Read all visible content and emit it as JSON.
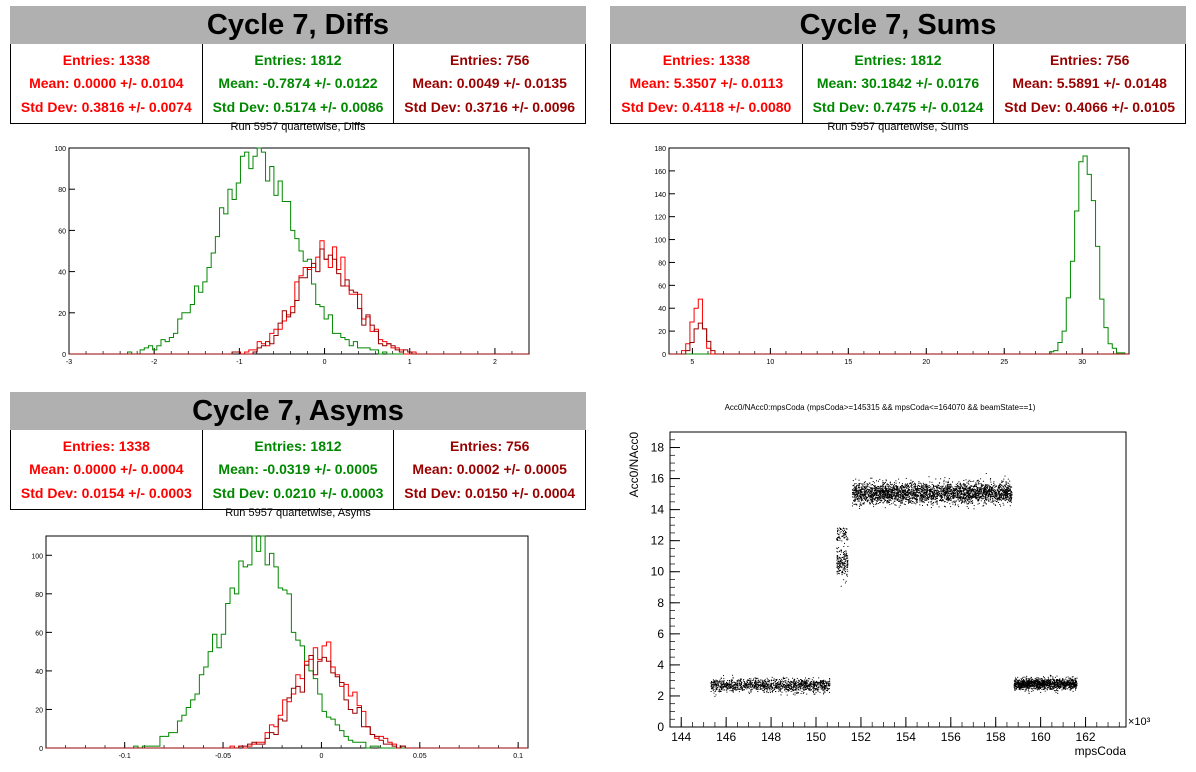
{
  "panels": [
    {
      "title": "Cycle 7, Diffs",
      "subtitle": "Run 5957 quartetwise, Diffs",
      "stats": [
        {
          "entries": "Entries: 1338",
          "mean": "Mean: 0.0000 +/- 0.0104",
          "std": "Std Dev: 0.3816 +/- 0.0074",
          "color": "#ff0000"
        },
        {
          "entries": "Entries: 1812",
          "mean": "Mean: -0.7874 +/- 0.0122",
          "std": "Std Dev: 0.5174 +/- 0.0086",
          "color": "#008800"
        },
        {
          "entries": "Entries: 756",
          "mean": "Mean: 0.0049 +/- 0.0135",
          "std": "Std Dev: 0.3716 +/- 0.0096",
          "color": "#990000"
        }
      ]
    },
    {
      "title": "Cycle 7, Sums",
      "subtitle": "Run 5957 quartetwise, Sums",
      "stats": [
        {
          "entries": "Entries: 1338",
          "mean": "Mean: 5.3507 +/- 0.0113",
          "std": "Std Dev: 0.4118 +/- 0.0080",
          "color": "#ff0000"
        },
        {
          "entries": "Entries: 1812",
          "mean": "Mean: 30.1842 +/- 0.0176",
          "std": "Std Dev: 0.7475 +/- 0.0124",
          "color": "#008800"
        },
        {
          "entries": "Entries: 756",
          "mean": "Mean: 5.5891 +/- 0.0148",
          "std": "Std Dev: 0.4066 +/- 0.0105",
          "color": "#990000"
        }
      ]
    },
    {
      "title": "Cycle 7, Asyms",
      "subtitle": "Run 5957 quartetwise, Asyms",
      "stats": [
        {
          "entries": "Entries: 1338",
          "mean": "Mean: 0.0000 +/- 0.0004",
          "std": "Std Dev: 0.0154 +/- 0.0003",
          "color": "#ff0000"
        },
        {
          "entries": "Entries: 1812",
          "mean": "Mean: -0.0319 +/- 0.0005",
          "std": "Std Dev: 0.0210 +/- 0.0003",
          "color": "#008800"
        },
        {
          "entries": "Entries: 756",
          "mean": "Mean: 0.0002 +/- 0.0005",
          "std": "Std Dev: 0.0150 +/- 0.0004",
          "color": "#990000"
        }
      ]
    }
  ],
  "chart_data": [
    {
      "type": "histogram",
      "name": "diffs",
      "xlim": [
        -3,
        2.4
      ],
      "ylim": [
        0,
        100
      ],
      "xticks": [
        -3,
        -2,
        -1,
        0,
        1,
        2
      ],
      "yticks": [
        0,
        20,
        40,
        60,
        80,
        100
      ],
      "series": [
        {
          "color": "#008800",
          "mean": -0.7874,
          "std": 0.5174,
          "entries": 1812,
          "peak": 95
        },
        {
          "color": "#ff0000",
          "mean": 0.0,
          "std": 0.3816,
          "entries": 1338,
          "peak": 49
        },
        {
          "color": "#990000",
          "mean": 0.0049,
          "std": 0.3716,
          "entries": 756,
          "peak": 47
        }
      ]
    },
    {
      "type": "histogram",
      "name": "sums",
      "xlim": [
        3.5,
        33
      ],
      "ylim": [
        0,
        180
      ],
      "xticks": [
        5,
        10,
        15,
        20,
        25,
        30
      ],
      "yticks": [
        0,
        20,
        40,
        60,
        80,
        100,
        120,
        140,
        160,
        180
      ],
      "series": [
        {
          "color": "#008800",
          "mean": 30.1842,
          "std": 0.7475,
          "entries": 1812,
          "peak": 173
        },
        {
          "color": "#ff0000",
          "mean": 5.3507,
          "std": 0.4118,
          "entries": 1338,
          "peak": 47
        },
        {
          "color": "#990000",
          "mean": 5.5891,
          "std": 0.4066,
          "entries": 756,
          "peak": 30
        }
      ]
    },
    {
      "type": "histogram",
      "name": "asyms",
      "xlim": [
        -0.14,
        0.105
      ],
      "ylim": [
        0,
        110
      ],
      "xticks": [
        -0.1,
        -0.05,
        0,
        0.05,
        0.1
      ],
      "xticklabels": [
        "-0.1",
        "-0.05",
        "0",
        "0.05",
        "0.1"
      ],
      "yticks": [
        0,
        20,
        40,
        60,
        80,
        100
      ],
      "series": [
        {
          "color": "#008800",
          "mean": -0.0319,
          "std": 0.021,
          "entries": 1812,
          "peak": 107
        },
        {
          "color": "#ff0000",
          "mean": 0.0,
          "std": 0.0154,
          "entries": 1338,
          "peak": 51
        },
        {
          "color": "#990000",
          "mean": 0.0002,
          "std": 0.015,
          "entries": 756,
          "peak": 45
        }
      ]
    },
    {
      "type": "scatter",
      "name": "acc0",
      "title": "Acc0/NAcc0:mpsCoda (mpsCoda>=145315 && mpsCoda<=164070 && beamState==1)",
      "xlabel": "mpsCoda",
      "ylabel": "Acc0/NAcc0",
      "xunit": "×10³",
      "xlim": [
        143.5,
        163.8
      ],
      "ylim": [
        0,
        19
      ],
      "xticks": [
        144,
        146,
        148,
        150,
        152,
        154,
        156,
        158,
        160,
        162
      ],
      "yticks": [
        0,
        2,
        4,
        6,
        8,
        10,
        12,
        14,
        16,
        18
      ],
      "clusters": [
        {
          "x": [
            145.3,
            150.6
          ],
          "y": 2.7,
          "spread": 0.35
        },
        {
          "x": [
            150.9,
            151.4
          ],
          "y": 10.6,
          "spread": 0.8
        },
        {
          "x": [
            151.6,
            158.7
          ],
          "y": 15.1,
          "spread": 0.55
        },
        {
          "x": [
            158.8,
            161.6
          ],
          "y": 2.8,
          "spread": 0.3
        }
      ]
    }
  ]
}
